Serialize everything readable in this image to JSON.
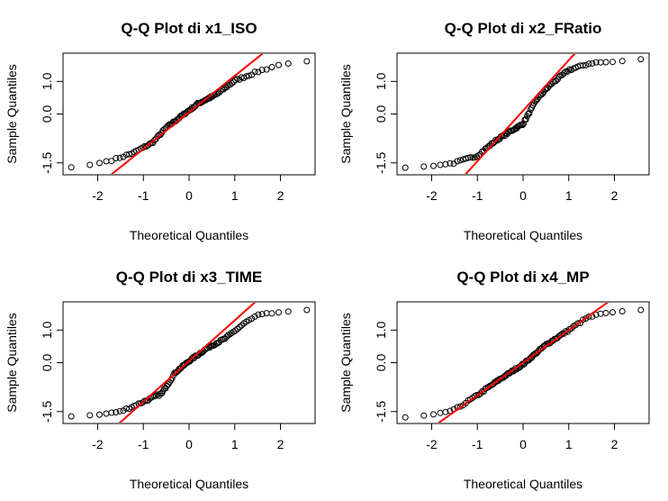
{
  "chart_data": [
    {
      "type": "scatter",
      "title": "Q-Q Plot di x1_ISO",
      "xlabel": "Theoretical Quantiles",
      "ylabel": "Sample Quantiles",
      "xlim": [
        -2.6,
        2.6
      ],
      "ylim": [
        -1.7,
        1.7
      ],
      "xticks": [
        "-2",
        "-1",
        "0",
        "1",
        "2"
      ],
      "yticks": [
        "-1.5",
        "0.0",
        "1.0"
      ],
      "line": {
        "intercept": 0.05,
        "slope": 1.12,
        "color": "#ff0000"
      },
      "knots": [
        [
          -2.6,
          -1.64
        ],
        [
          -2.1,
          -1.55
        ],
        [
          -1.6,
          -1.38
        ],
        [
          -1.2,
          -1.18
        ],
        [
          -0.8,
          -0.88
        ],
        [
          -0.5,
          -0.42
        ],
        [
          -0.2,
          -0.1
        ],
        [
          0.2,
          0.32
        ],
        [
          0.6,
          0.6
        ],
        [
          1.0,
          1.02
        ],
        [
          1.5,
          1.3
        ],
        [
          2.0,
          1.52
        ],
        [
          2.6,
          1.62
        ]
      ],
      "colors": {
        "points": "#000000",
        "line": "#ff0000"
      }
    },
    {
      "type": "scatter",
      "title": "Q-Q Plot di x2_FRatio",
      "xlabel": "Theoretical Quantiles",
      "ylabel": "Sample Quantiles",
      "xlim": [
        -2.6,
        2.6
      ],
      "ylim": [
        -1.7,
        1.7
      ],
      "xticks": [
        "-2",
        "-1",
        "0",
        "1",
        "2"
      ],
      "yticks": [
        "-1.5",
        "0.0",
        "1.0"
      ],
      "line": {
        "intercept": 0.1,
        "slope": 1.55,
        "color": "#ff0000"
      },
      "knots": [
        [
          -2.6,
          -1.65
        ],
        [
          -2.0,
          -1.6
        ],
        [
          -1.5,
          -1.5
        ],
        [
          -1.0,
          -1.28
        ],
        [
          -0.6,
          -0.82
        ],
        [
          -0.3,
          -0.55
        ],
        [
          0.0,
          -0.3
        ],
        [
          0.3,
          0.45
        ],
        [
          0.6,
          0.9
        ],
        [
          1.0,
          1.35
        ],
        [
          1.5,
          1.57
        ],
        [
          2.0,
          1.6
        ],
        [
          2.6,
          1.68
        ]
      ],
      "colors": {
        "points": "#000000",
        "line": "#ff0000"
      }
    },
    {
      "type": "scatter",
      "title": "Q-Q Plot di x3_TIME",
      "xlabel": "Theoretical Quantiles",
      "ylabel": "Sample Quantiles",
      "xlim": [
        -2.6,
        2.6
      ],
      "ylim": [
        -1.7,
        1.7
      ],
      "xticks": [
        "-2",
        "-1",
        "0",
        "1",
        "2"
      ],
      "yticks": [
        "-1.5",
        "0.0",
        "1.0"
      ],
      "line": {
        "intercept": 0.05,
        "slope": 1.25,
        "color": "#ff0000"
      },
      "knots": [
        [
          -2.6,
          -1.65
        ],
        [
          -2.0,
          -1.6
        ],
        [
          -1.5,
          -1.5
        ],
        [
          -1.0,
          -1.2
        ],
        [
          -0.6,
          -0.95
        ],
        [
          -0.3,
          -0.3
        ],
        [
          0.0,
          0.05
        ],
        [
          0.4,
          0.45
        ],
        [
          0.8,
          0.75
        ],
        [
          1.2,
          1.2
        ],
        [
          1.5,
          1.45
        ],
        [
          2.0,
          1.55
        ],
        [
          2.6,
          1.62
        ]
      ],
      "colors": {
        "points": "#000000",
        "line": "#ff0000"
      }
    },
    {
      "type": "scatter",
      "title": "Q-Q Plot di x4_MP",
      "xlabel": "Theoretical Quantiles",
      "ylabel": "Sample Quantiles",
      "xlim": [
        -2.6,
        2.6
      ],
      "ylim": [
        -1.7,
        1.7
      ],
      "xticks": [
        "-2",
        "-1",
        "0",
        "1",
        "2"
      ],
      "yticks": [
        "-1.5",
        "0.0",
        "1.0"
      ],
      "line": {
        "intercept": 0.0,
        "slope": 1.0,
        "color": "#ff0000"
      },
      "knots": [
        [
          -2.6,
          -1.68
        ],
        [
          -2.0,
          -1.6
        ],
        [
          -1.5,
          -1.45
        ],
        [
          -1.0,
          -1.0
        ],
        [
          -0.5,
          -0.5
        ],
        [
          0.0,
          -0.05
        ],
        [
          0.5,
          0.55
        ],
        [
          1.0,
          1.0
        ],
        [
          1.4,
          1.38
        ],
        [
          1.8,
          1.52
        ],
        [
          2.2,
          1.58
        ],
        [
          2.6,
          1.62
        ]
      ],
      "colors": {
        "points": "#000000",
        "line": "#ff0000"
      }
    }
  ]
}
